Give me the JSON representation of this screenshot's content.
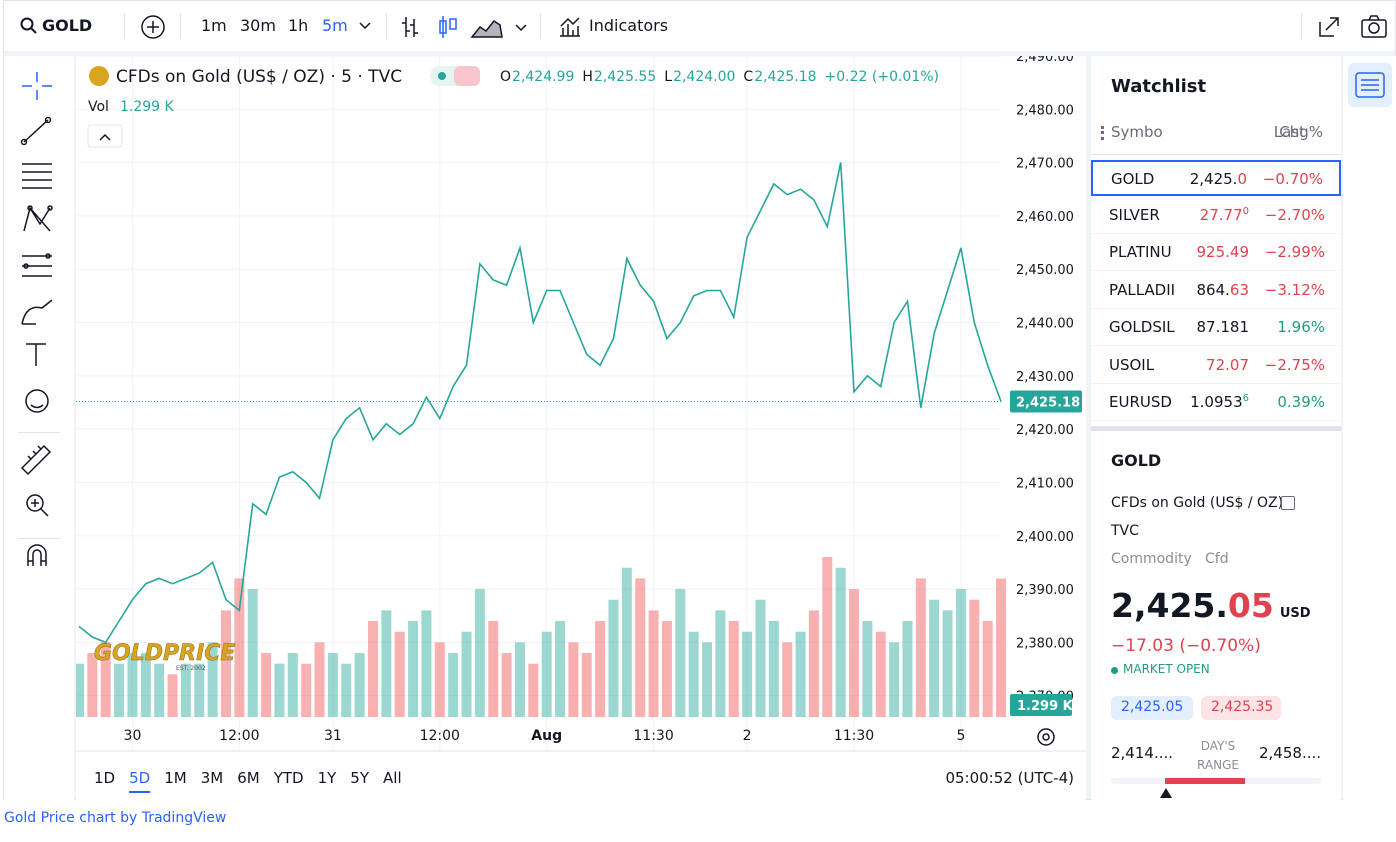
{
  "toolbar": {
    "symbol": "GOLD",
    "intervals": [
      "1m",
      "30m",
      "1h",
      "5m"
    ],
    "active_interval": 3,
    "indicators": "Indicators"
  },
  "legend": {
    "title": "CFDs on Gold (US$ / OZ) · 5 · TVC",
    "ohlc": [
      {
        "key": "O",
        "value": "2,424.99"
      },
      {
        "key": "H",
        "value": "2,425.55"
      },
      {
        "key": "L",
        "value": "2,424.00"
      },
      {
        "key": "C",
        "value": "2,425.18"
      }
    ],
    "change": "+0.22 (+0.01%)",
    "vol_key": "Vol",
    "vol_value": "1.299 K"
  },
  "chart_data": {
    "type": "line",
    "color": "#26a69a",
    "up_color": "#26a69a",
    "down_color": "#ef5350",
    "categories": [
      null,
      null,
      null,
      null,
      "30",
      null,
      null,
      null,
      null,
      null,
      null,
      null,
      "12:00",
      null,
      null,
      null,
      null,
      null,
      null,
      "31",
      null,
      null,
      null,
      null,
      null,
      null,
      null,
      "12:00",
      null,
      null,
      null,
      null,
      null,
      null,
      null,
      "Aug",
      null,
      null,
      null,
      null,
      null,
      null,
      null,
      "11:30",
      null,
      null,
      null,
      null,
      null,
      null,
      "2",
      null,
      null,
      null,
      null,
      null,
      null,
      null,
      "11:30",
      null,
      null,
      null,
      null,
      null,
      null,
      null,
      "5",
      null,
      null,
      null
    ],
    "values": [
      2383,
      2381,
      2380,
      2384,
      2388,
      2391,
      2392,
      2391,
      2392,
      2393,
      2395,
      2388,
      2386,
      2406,
      2404,
      2411,
      2412,
      2410,
      2407,
      2418,
      2422,
      2424,
      2418,
      2421,
      2419,
      2421,
      2426,
      2422,
      2428,
      2432,
      2451,
      2448,
      2447,
      2454,
      2440,
      2446,
      2446,
      2440,
      2434,
      2432,
      2437,
      2452,
      2447,
      2444,
      2437,
      2440,
      2445,
      2446,
      2446,
      2441,
      2456,
      2461,
      2466,
      2464,
      2465,
      2463,
      2458,
      2470,
      2427,
      2430,
      2428,
      2440,
      2444,
      2424,
      2438,
      2446,
      2454,
      2440,
      2432,
      2425.18
    ],
    "volume": [
      0.5,
      0.6,
      0.7,
      0.5,
      0.6,
      0.6,
      0.5,
      0.4,
      0.5,
      0.5,
      0.7,
      1.0,
      1.3,
      1.2,
      0.6,
      0.5,
      0.6,
      0.5,
      0.7,
      0.6,
      0.5,
      0.6,
      0.9,
      1.0,
      0.8,
      0.9,
      1.0,
      0.7,
      0.6,
      0.8,
      1.2,
      0.9,
      0.6,
      0.7,
      0.5,
      0.8,
      0.9,
      0.7,
      0.6,
      0.9,
      1.1,
      1.4,
      1.3,
      1.0,
      0.9,
      1.2,
      0.8,
      0.7,
      1.0,
      0.9,
      0.8,
      1.1,
      0.9,
      0.7,
      0.8,
      1.0,
      1.5,
      1.4,
      1.2,
      0.9,
      0.8,
      0.7,
      0.9,
      1.3,
      1.1,
      1.0,
      1.2,
      1.1,
      0.9,
      1.299
    ],
    "vlim": [
      0,
      6.2
    ],
    "ylim": [
      2366,
      2490
    ],
    "yticks": [
      {
        "value": 2370,
        "label": "2,370.00"
      },
      {
        "value": 2380,
        "label": "2,380.00"
      },
      {
        "value": 2390,
        "label": "2,390.00"
      },
      {
        "value": 2400,
        "label": "2,400.00"
      },
      {
        "value": 2410,
        "label": "2,410.00"
      },
      {
        "value": 2420,
        "label": "2,420.00"
      },
      {
        "value": 2430,
        "label": "2,430.00"
      },
      {
        "value": 2440,
        "label": "2,440.00"
      },
      {
        "value": 2450,
        "label": "2,450.00"
      },
      {
        "value": 2460,
        "label": "2,460.00"
      },
      {
        "value": 2470,
        "label": "2,470.00"
      },
      {
        "value": 2480,
        "label": "2,480.00"
      },
      {
        "value": 2490,
        "label": "2,490.00"
      }
    ],
    "grid": true,
    "last": {
      "value": 2425.18,
      "label": "2,425.18"
    },
    "last_volume": {
      "value": 1.299,
      "label": "1.299 K"
    },
    "watermark": "GOLDPRICE",
    "watermark_sub": "EST. 2002"
  },
  "ranges": {
    "items": [
      "1D",
      "5D",
      "1M",
      "3M",
      "6M",
      "YTD",
      "1Y",
      "5Y",
      "All"
    ],
    "active": 1,
    "clock": "05:00:52 (UTC-4)"
  },
  "watchlist": {
    "title": "Watchlist",
    "headers": [
      "Symbo",
      "Last",
      "Chg%"
    ],
    "rows": [
      {
        "symbol": "GOLD",
        "last": "2,425.",
        "last_tail": "0",
        "chg": "−0.70%",
        "color": "#e0424f"
      },
      {
        "symbol": "SILVER",
        "last": "27.77",
        "last_tail": "0",
        "chg": "−2.70%",
        "color": "#e0424f"
      },
      {
        "symbol": "PLATINU",
        "last": "925.49",
        "last_tail": "",
        "chg": "−2.99%",
        "color": "#e0424f"
      },
      {
        "symbol": "PALLADII",
        "last": "864.",
        "last_tail": "63",
        "chg": "−3.12%",
        "color": "#e0424f"
      },
      {
        "symbol": "GOLDSIL'",
        "last": "87.181",
        "last_tail": "",
        "chg": "1.96%",
        "color": "#1e9e7e"
      },
      {
        "symbol": "USOIL",
        "last": "72.07",
        "last_tail": "",
        "chg": "−2.75%",
        "color": "#e0424f"
      },
      {
        "symbol": "EURUSD",
        "last": "1.0953",
        "last_tail": "6",
        "chg": "0.39%",
        "color": "#1e9e7e"
      }
    ],
    "selected": 0
  },
  "details": {
    "symbol": "GOLD",
    "name": "CFDs on Gold (US$ / OZ)",
    "exchange": "TVC",
    "category": "Commodity",
    "subtype": "Cfd",
    "price_main": "2,425.",
    "price_frac": "05",
    "currency": "USD",
    "change": "−17.03 (−0.70%)",
    "status": "MARKET OPEN",
    "bid": "2,425.05",
    "ask": "2,425.35",
    "range_low": "2,414....",
    "range_label": "DAY'S RANGE",
    "range_high": "2,458...."
  },
  "footer": "Gold Price chart by TradingView"
}
